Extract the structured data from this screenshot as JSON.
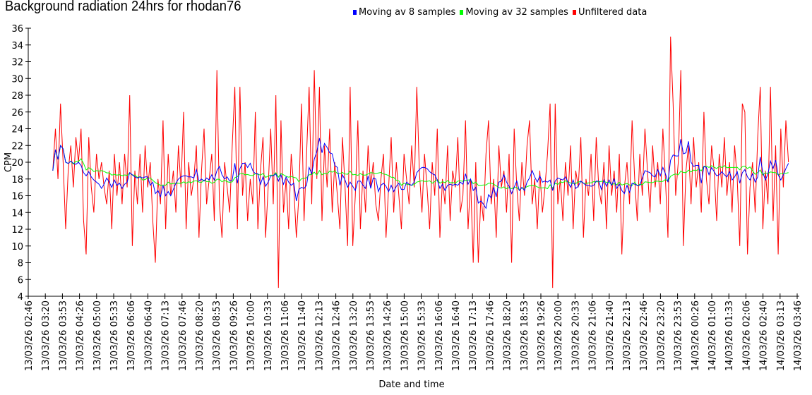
{
  "chart_data": {
    "type": "line",
    "title": "Background radiation 24hrs for rhodan76",
    "xlabel": "Date and time",
    "ylabel": "CPM",
    "ylim": [
      4,
      36
    ],
    "ystep": 2,
    "xlim_minutes": [
      0,
      1500
    ],
    "x_origin": "13/03/26 02:46",
    "xtick_labels": [
      "13/03/26 02:46",
      "13/03/26 03:20",
      "13/03/26 03:53",
      "13/03/26 04:26",
      "13/03/26 05:00",
      "13/03/26 05:33",
      "13/03/26 06:06",
      "13/03/26 06:40",
      "13/03/26 07:13",
      "13/03/26 07:46",
      "13/03/26 08:20",
      "13/03/26 08:53",
      "13/03/26 09:26",
      "13/03/26 10:00",
      "13/03/26 10:33",
      "13/03/26 11:06",
      "13/03/26 11:40",
      "13/03/26 12:13",
      "13/03/26 12:46",
      "13/03/26 13:20",
      "13/03/26 13:53",
      "13/03/26 14:26",
      "13/03/26 15:00",
      "13/03/26 15:33",
      "13/03/26 16:06",
      "13/03/26 16:40",
      "13/03/26 17:13",
      "13/03/26 17:46",
      "13/03/26 18:20",
      "13/03/26 18:53",
      "13/03/26 19:26",
      "13/03/26 20:00",
      "13/03/26 20:33",
      "13/03/26 21:06",
      "13/03/26 21:40",
      "13/03/26 22:13",
      "13/03/26 22:46",
      "13/03/26 23:20",
      "13/03/26 23:53",
      "14/03/26 00:26",
      "14/03/26 01:00",
      "14/03/26 01:33",
      "14/03/26 02:06",
      "14/03/26 02:40",
      "14/03/26 03:13",
      "14/03/26 03:46"
    ],
    "grid": false,
    "legend_position": "top-center",
    "data_start_minute": 48,
    "data_interval_minutes": 5,
    "series": [
      {
        "name": "Moving av 8 samples",
        "color": "#0000ff",
        "window": 8
      },
      {
        "name": "Moving av 32 samples",
        "color": "#00ff00",
        "window": 32
      },
      {
        "name": "Unfiltered data",
        "color": "#ff0000",
        "window": 1
      }
    ],
    "values": [
      19,
      24,
      18,
      27,
      20,
      12,
      19,
      22,
      17,
      23,
      20,
      24,
      13,
      9,
      23,
      17,
      14,
      21,
      18,
      20,
      17,
      15,
      19,
      12,
      21,
      16,
      20,
      15,
      21,
      17,
      28,
      10,
      19,
      15,
      21,
      14,
      22,
      17,
      20,
      13,
      8,
      18,
      15,
      25,
      12,
      21,
      16,
      19,
      14,
      22,
      17,
      26,
      12,
      20,
      16,
      18,
      22,
      11,
      19,
      24,
      15,
      18,
      21,
      13,
      31,
      15,
      11,
      20,
      17,
      14,
      22,
      29,
      12,
      29,
      16,
      20,
      13,
      18,
      15,
      26,
      12,
      19,
      23,
      11,
      17,
      24,
      15,
      28,
      5,
      25,
      14,
      18,
      12,
      21,
      17,
      11,
      16,
      27,
      13,
      21,
      29,
      15,
      31,
      18,
      29,
      13,
      22,
      17,
      24,
      14,
      20,
      16,
      12,
      23,
      17,
      10,
      29,
      10,
      16,
      25,
      12,
      19,
      14,
      22,
      17,
      20,
      15,
      13,
      18,
      21,
      11,
      17,
      23,
      14,
      20,
      16,
      12,
      21,
      18,
      15,
      22,
      17,
      29,
      19,
      14,
      21,
      17,
      12,
      20,
      16,
      24,
      11,
      18,
      15,
      22,
      13,
      19,
      17,
      23,
      14,
      16,
      25,
      12,
      18,
      8,
      20,
      8,
      16,
      13,
      21,
      25,
      15,
      18,
      11,
      22,
      17,
      19,
      14,
      21,
      8,
      24,
      17,
      13,
      20,
      16,
      22,
      25,
      15,
      18,
      12,
      19,
      14,
      17,
      21,
      27,
      5,
      27,
      15,
      18,
      13,
      20,
      16,
      22,
      12,
      19,
      17,
      23,
      11,
      18,
      16,
      21,
      13,
      23,
      17,
      15,
      20,
      12,
      22,
      16,
      19,
      14,
      21,
      9,
      17,
      20,
      15,
      25,
      18,
      13,
      21,
      16,
      24,
      19,
      14,
      22,
      17,
      20,
      15,
      24,
      18,
      11,
      35,
      27,
      16,
      20,
      31,
      10,
      19,
      22,
      15,
      23,
      17,
      20,
      14,
      26,
      18,
      15,
      22,
      19,
      13,
      21,
      17,
      23,
      16,
      20,
      14,
      22,
      18,
      10,
      27,
      26,
      9,
      17,
      20,
      14,
      23,
      29,
      12,
      19,
      15,
      29,
      13,
      22,
      9,
      24,
      17,
      25,
      20
    ]
  }
}
